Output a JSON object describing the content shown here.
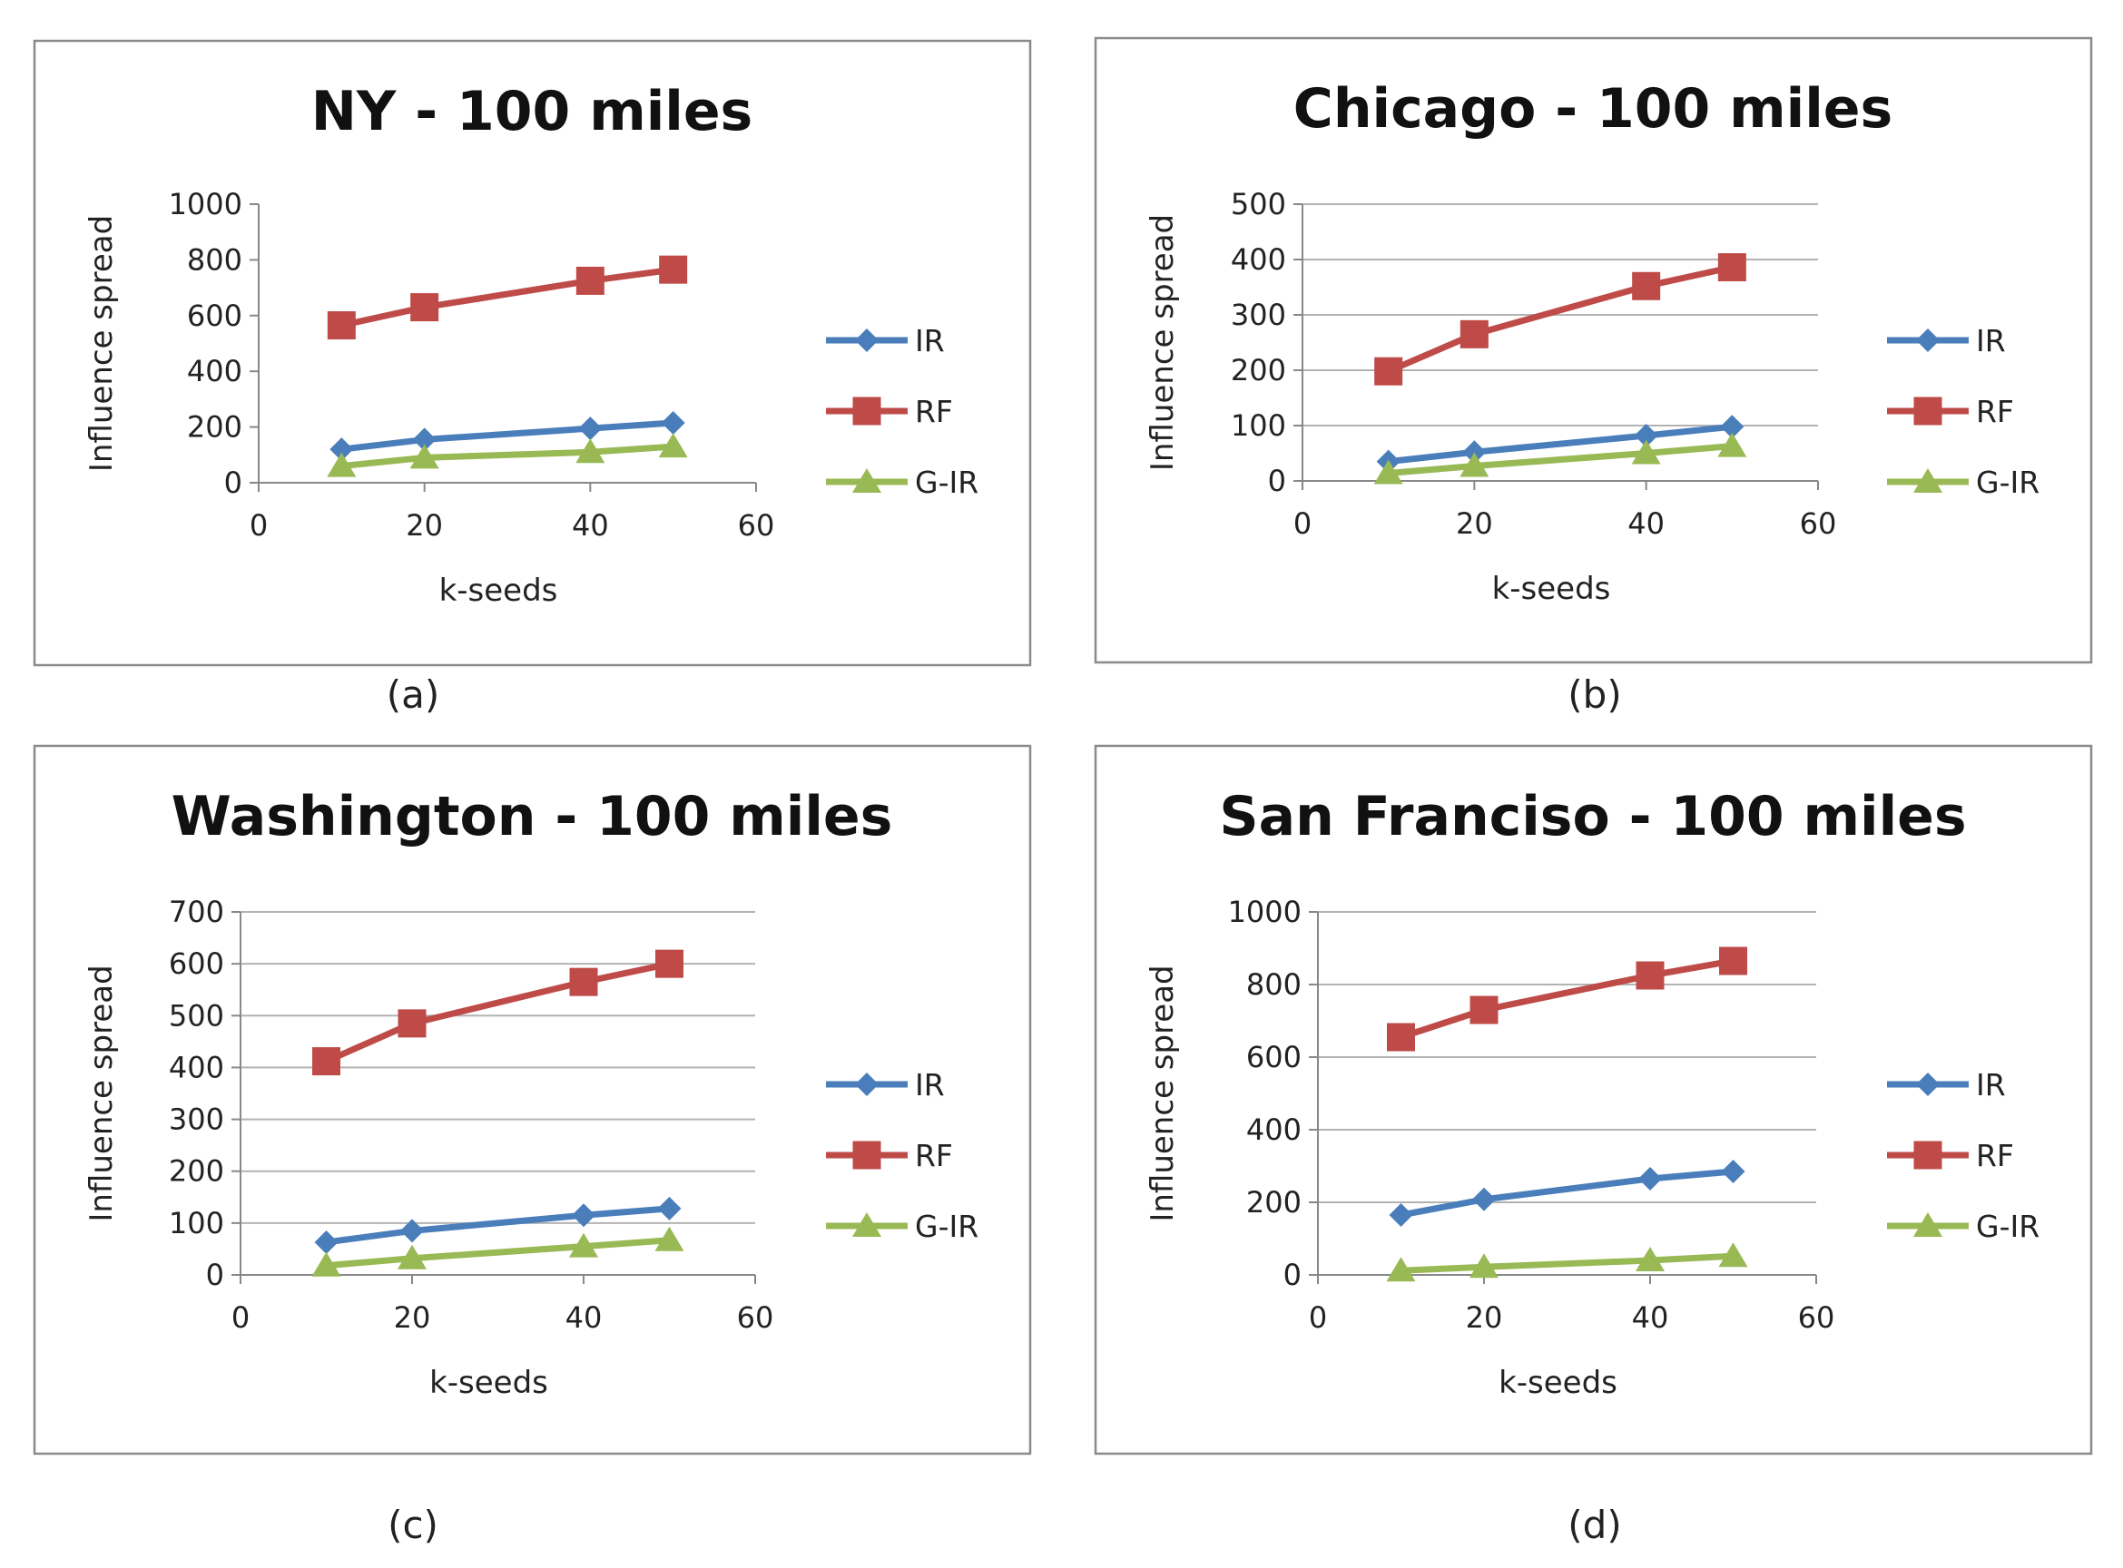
{
  "colors": {
    "IR": "#4a7ebb",
    "RF": "#be4b48",
    "G-IR": "#98b954",
    "grid": "#b3b3b3",
    "frame": "#8a8a8a",
    "text": "#222222"
  },
  "chart_data": [
    {
      "type": "line",
      "title": "NY - 100 miles",
      "panel_label": "(a)",
      "xlabel": "k-seeds",
      "ylabel": "Influence spread",
      "x": [
        10,
        20,
        40,
        50
      ],
      "xlim": [
        0,
        60
      ],
      "xticks": [
        0,
        20,
        40,
        60
      ],
      "ylim": [
        0,
        1000
      ],
      "yticks": [
        0,
        200,
        400,
        600,
        800,
        1000
      ],
      "grid": false,
      "legend": "right",
      "series": [
        {
          "name": "IR",
          "marker": "diamond",
          "values": [
            120,
            155,
            195,
            215
          ]
        },
        {
          "name": "RF",
          "marker": "square",
          "values": [
            565,
            630,
            725,
            765
          ]
        },
        {
          "name": "G-IR",
          "marker": "triangle",
          "values": [
            60,
            90,
            110,
            130
          ]
        }
      ]
    },
    {
      "type": "line",
      "title": "Chicago - 100 miles",
      "panel_label": "(b)",
      "xlabel": "k-seeds",
      "ylabel": "Influence spread",
      "x": [
        10,
        20,
        40,
        50
      ],
      "xlim": [
        0,
        60
      ],
      "xticks": [
        0,
        20,
        40,
        60
      ],
      "ylim": [
        0,
        500
      ],
      "yticks": [
        0,
        100,
        200,
        300,
        400,
        500
      ],
      "grid": true,
      "legend": "right",
      "series": [
        {
          "name": "IR",
          "marker": "diamond",
          "values": [
            35,
            52,
            82,
            98
          ]
        },
        {
          "name": "RF",
          "marker": "square",
          "values": [
            198,
            265,
            352,
            386
          ]
        },
        {
          "name": "G-IR",
          "marker": "triangle",
          "values": [
            14,
            27,
            50,
            63
          ]
        }
      ]
    },
    {
      "type": "line",
      "title": "Washington - 100 miles",
      "panel_label": "(c)",
      "xlabel": "k-seeds",
      "ylabel": "Influence spread",
      "x": [
        10,
        20,
        40,
        50
      ],
      "xlim": [
        0,
        60
      ],
      "xticks": [
        0,
        20,
        40,
        60
      ],
      "ylim": [
        0,
        700
      ],
      "yticks": [
        0,
        100,
        200,
        300,
        400,
        500,
        600,
        700
      ],
      "grid": true,
      "legend": "right",
      "series": [
        {
          "name": "IR",
          "marker": "diamond",
          "values": [
            63,
            85,
            115,
            128
          ]
        },
        {
          "name": "RF",
          "marker": "square",
          "values": [
            412,
            485,
            565,
            600
          ]
        },
        {
          "name": "G-IR",
          "marker": "triangle",
          "values": [
            18,
            32,
            55,
            67
          ]
        }
      ]
    },
    {
      "type": "line",
      "title": "San Franciso - 100 miles",
      "panel_label": "(d)",
      "xlabel": "k-seeds",
      "ylabel": "Influence spread",
      "x": [
        10,
        20,
        40,
        50
      ],
      "xlim": [
        0,
        60
      ],
      "xticks": [
        0,
        20,
        40,
        60
      ],
      "ylim": [
        0,
        1000
      ],
      "yticks": [
        0,
        200,
        400,
        600,
        800,
        1000
      ],
      "grid": true,
      "legend": "right",
      "series": [
        {
          "name": "IR",
          "marker": "diamond",
          "values": [
            165,
            208,
            265,
            285
          ]
        },
        {
          "name": "RF",
          "marker": "square",
          "values": [
            655,
            730,
            825,
            865
          ]
        },
        {
          "name": "G-IR",
          "marker": "triangle",
          "values": [
            12,
            22,
            40,
            52
          ]
        }
      ]
    }
  ]
}
